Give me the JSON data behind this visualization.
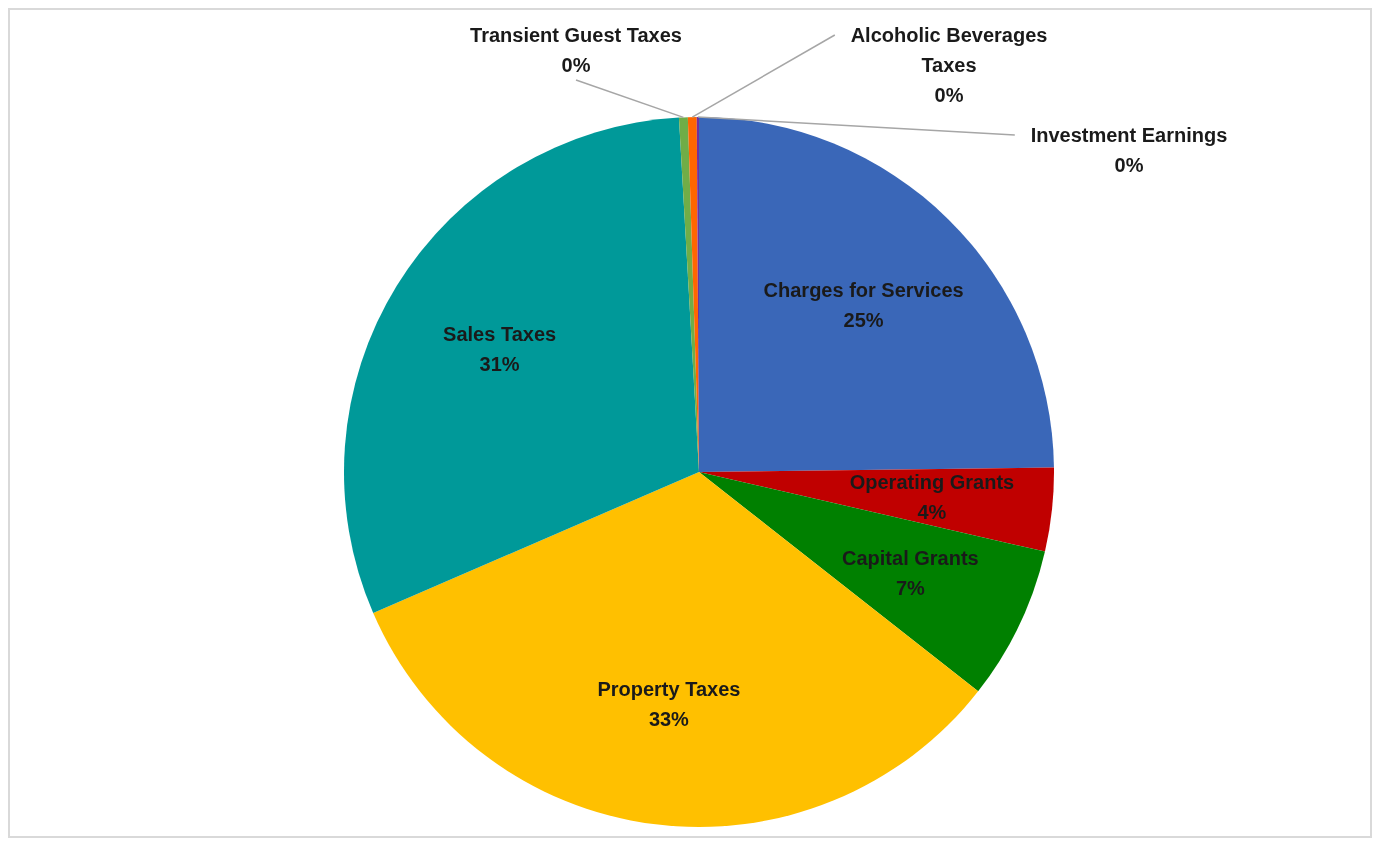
{
  "chart_data": {
    "type": "pie",
    "categories": [
      "Charges for Services",
      "Operating Grants",
      "Capital Grants",
      "Property Taxes",
      "Sales Taxes",
      "Transient Guest Taxes",
      "Alcoholic Beverages Taxes",
      "Investment Earnings"
    ],
    "values": [
      24.8,
      3.8,
      7.0,
      32.9,
      30.6,
      0.4,
      0.4,
      0.1
    ],
    "value_labels": [
      "25%",
      "4%",
      "7%",
      "33%",
      "31%",
      "0%",
      "0%",
      "0%"
    ],
    "colors": [
      "#3a67b8",
      "#c00000",
      "#008000",
      "#ffc000",
      "#009999",
      "#70ad47",
      "#ff6600",
      "#7030a0"
    ]
  }
}
